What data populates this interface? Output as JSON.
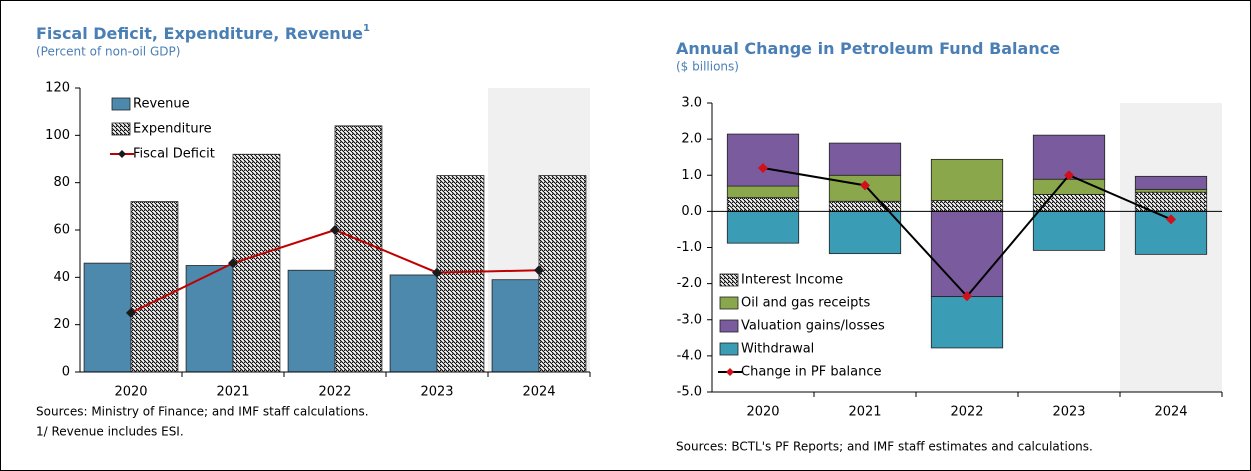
{
  "chart_data": [
    {
      "type": "bar",
      "title": "Fiscal Deficit, Expenditure, Revenue",
      "title_superscript": "1",
      "subtitle": "(Percent of non-oil GDP)",
      "categories": [
        "2020",
        "2021",
        "2022",
        "2023",
        "2024"
      ],
      "series": [
        {
          "name": "Revenue",
          "type": "bar",
          "color": "#4d89ad",
          "values": [
            46,
            45,
            43,
            41,
            39
          ]
        },
        {
          "name": "Expenditure",
          "type": "bar",
          "color": "#000000",
          "fill_style": "hatch",
          "values": [
            72,
            92,
            104,
            83,
            83
          ]
        },
        {
          "name": "Fiscal Deficit",
          "type": "line",
          "color": "#c00000",
          "marker_color": "#1a1a1a",
          "values": [
            25,
            46,
            60,
            42,
            43
          ]
        }
      ],
      "ylim": [
        0,
        120
      ],
      "yticks": [
        0,
        20,
        40,
        60,
        80,
        100,
        120
      ],
      "shade_from_index": 4,
      "legend": "top-left",
      "notes": [
        "Sources: Ministry of Finance; and IMF staff calculations.",
        "1/ Revenue includes ESI."
      ]
    },
    {
      "type": "stacked_bar",
      "title": "Annual Change in Petroleum Fund Balance",
      "subtitle": "($ billions)",
      "categories": [
        "2020",
        "2021",
        "2022",
        "2023",
        "2024"
      ],
      "series": [
        {
          "name": "Interest Income",
          "type": "bar",
          "color": "#000000",
          "fill_style": "hatch",
          "values": [
            0.38,
            0.28,
            0.3,
            0.47,
            0.53
          ]
        },
        {
          "name": "Oil and gas receipts",
          "type": "bar",
          "color": "#8aa84b",
          "values": [
            0.32,
            0.72,
            1.14,
            0.42,
            0.08
          ]
        },
        {
          "name": "Valuation gains/losses",
          "type": "bar",
          "color": "#7a5c9e",
          "values": [
            1.44,
            0.89,
            -2.36,
            1.22,
            0.36
          ]
        },
        {
          "name": "Withdrawal",
          "type": "bar",
          "color": "#3b9cb6",
          "values": [
            -0.88,
            -1.17,
            -1.42,
            -1.08,
            -1.19
          ]
        },
        {
          "name": "Change in PF balance",
          "type": "line",
          "color": "#000000",
          "marker_color": "#d0101a",
          "values": [
            1.2,
            0.72,
            -2.35,
            1.0,
            -0.22
          ]
        }
      ],
      "ylim": [
        -5,
        3
      ],
      "yticks": [
        {
          "value": 3,
          "label": "3.0"
        },
        {
          "value": 2,
          "label": "2.0"
        },
        {
          "value": 1,
          "label": "1.0"
        },
        {
          "value": 0,
          "label": "0.0"
        },
        {
          "value": -1,
          "label": "-1.0"
        },
        {
          "value": -2,
          "label": "-2.0"
        },
        {
          "value": -3,
          "label": "-3.0"
        },
        {
          "value": -4,
          "label": "-4.0"
        },
        {
          "value": -5,
          "label": "-5.0"
        }
      ],
      "shade_from_index": 4,
      "legend": "bottom-left",
      "notes": [
        "Sources: BCTL's PF Reports; and IMF staff estimates and calculations."
      ]
    }
  ]
}
